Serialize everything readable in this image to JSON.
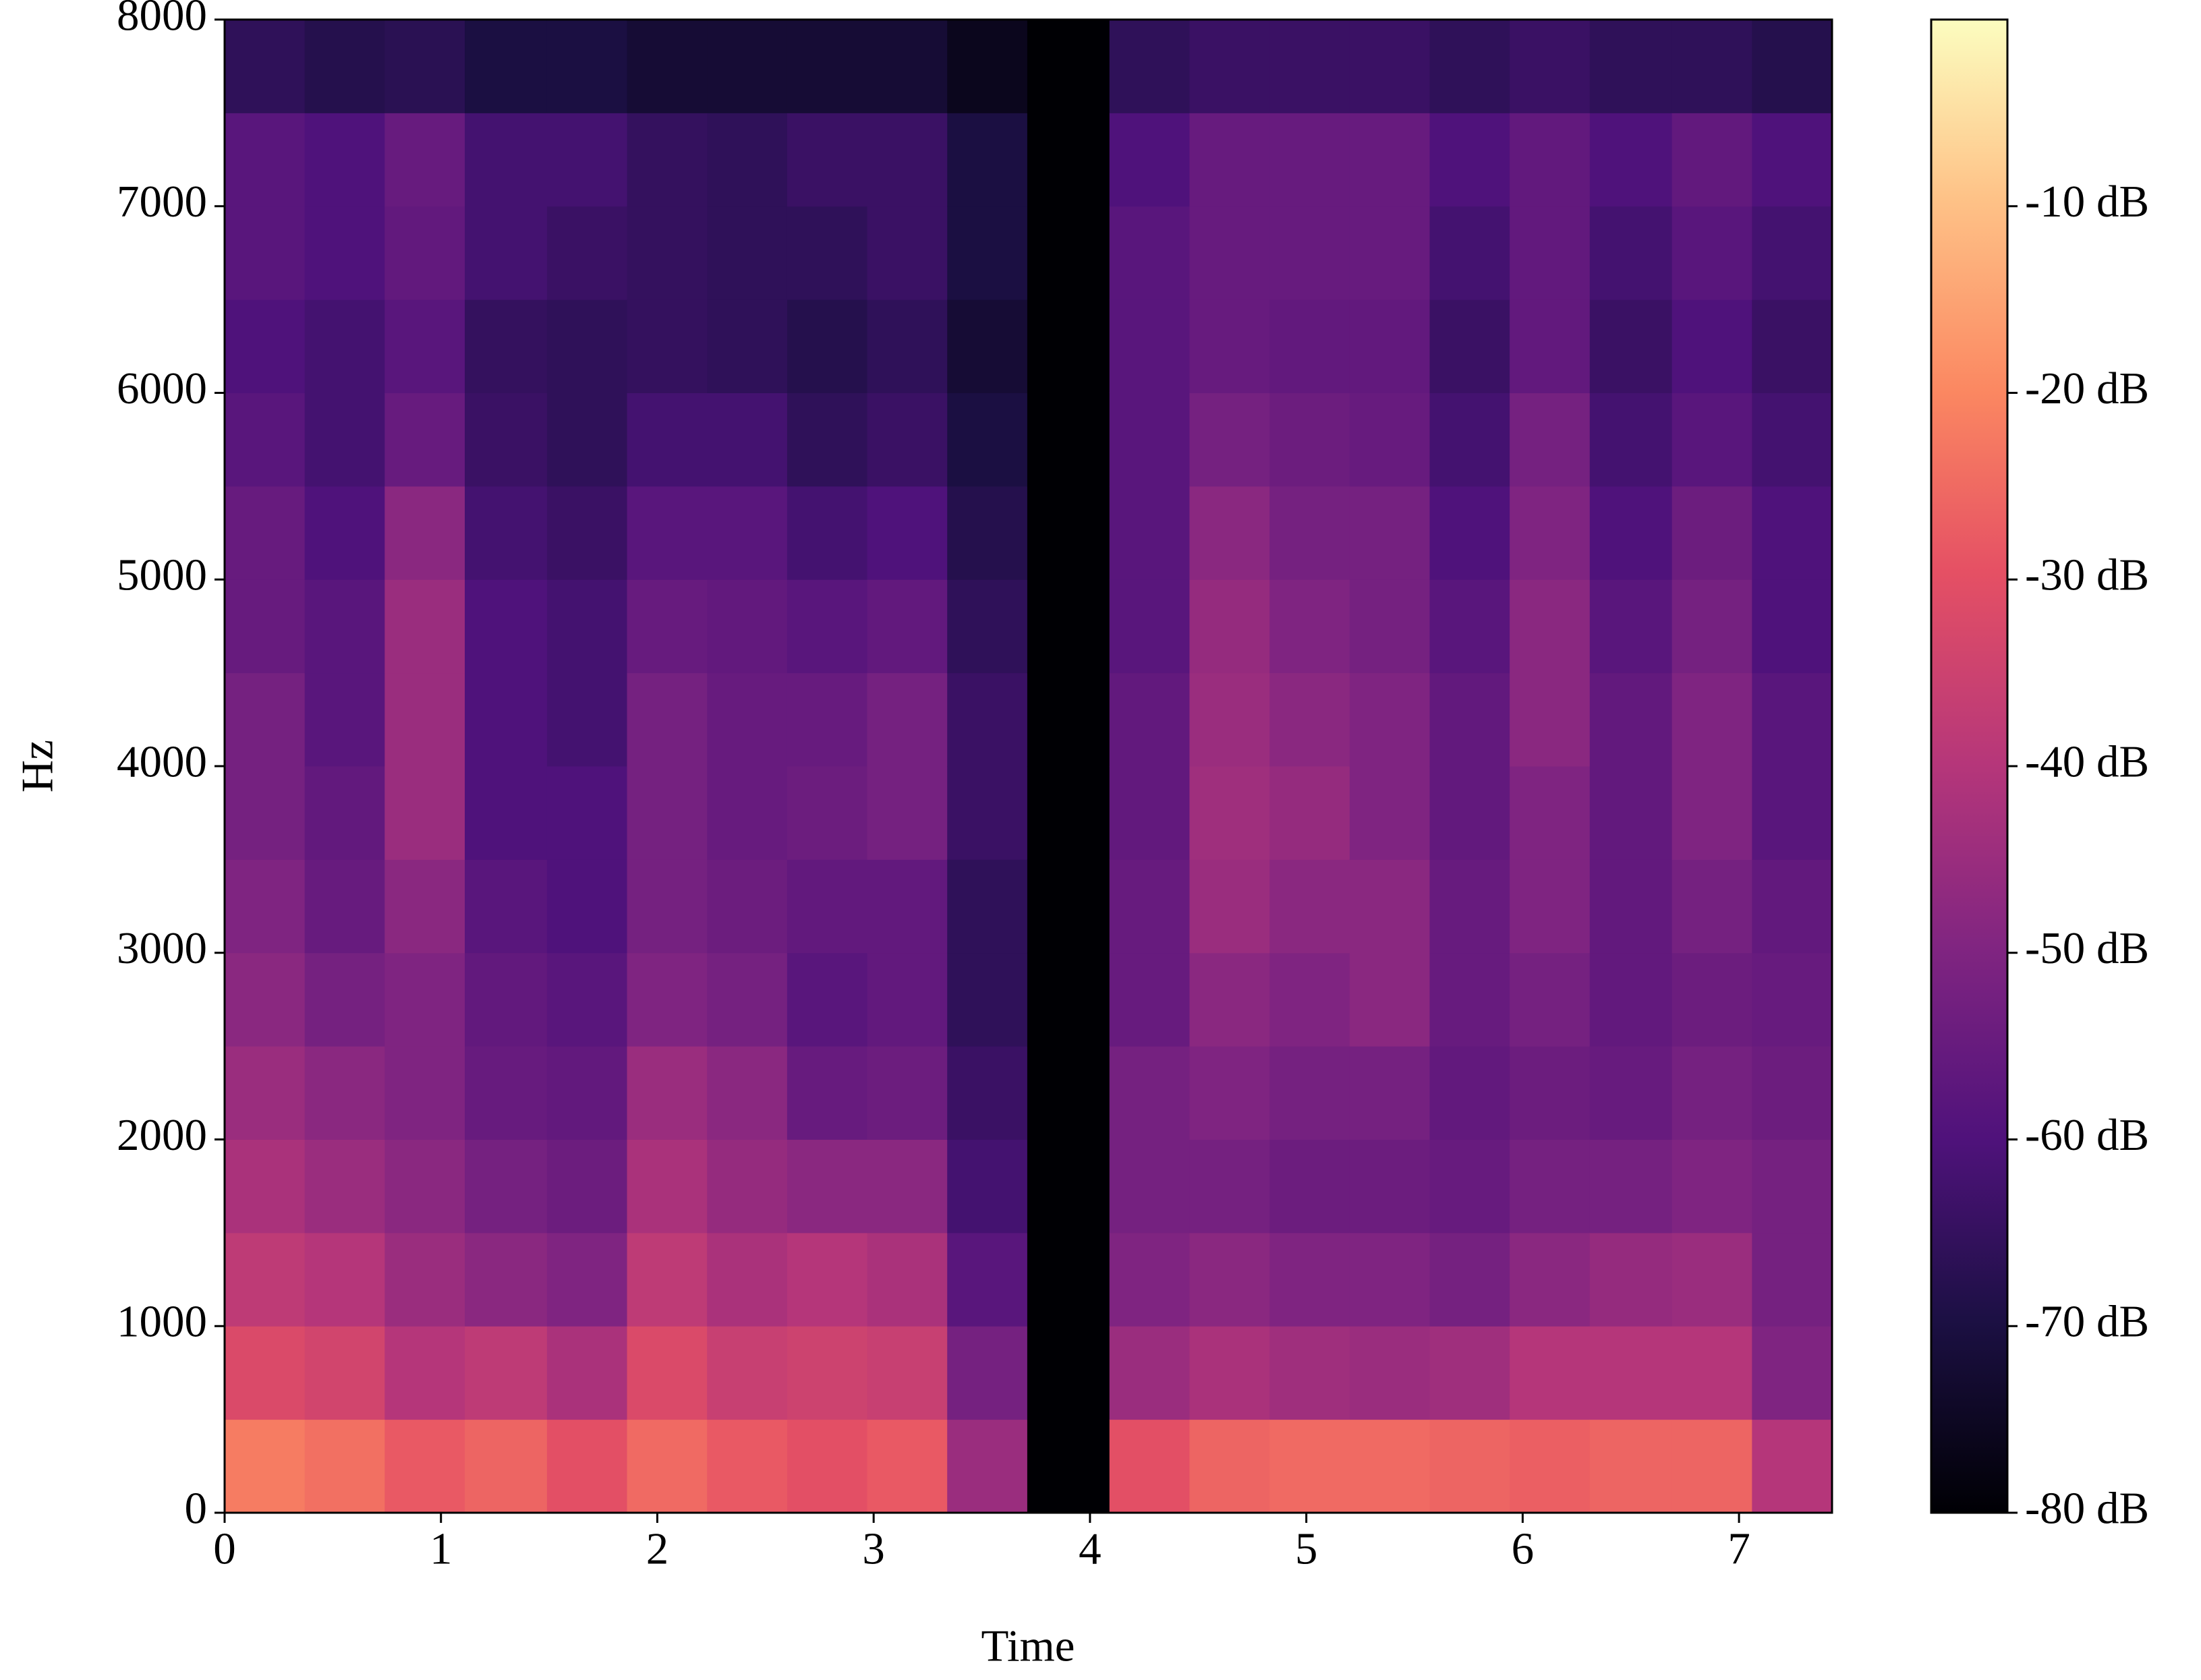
{
  "chart_data": {
    "type": "spectrogram",
    "xlabel": "Time",
    "ylabel": "Hz",
    "colormap": "magma",
    "xlim": [
      0,
      7.43
    ],
    "ylim": [
      0,
      8000
    ],
    "xticks": [
      0,
      1,
      2,
      3,
      4,
      5,
      6,
      7
    ],
    "yticks": [
      0,
      1000,
      2000,
      3000,
      4000,
      5000,
      6000,
      7000,
      8000
    ],
    "clim": [
      -80,
      0
    ],
    "cticks": [
      {
        "value": -80,
        "label": "-80 dB"
      },
      {
        "value": -70,
        "label": "-70 dB"
      },
      {
        "value": -60,
        "label": "-60 dB"
      },
      {
        "value": -50,
        "label": "-50 dB"
      },
      {
        "value": -40,
        "label": "-40 dB"
      },
      {
        "value": -30,
        "label": "-30 dB"
      },
      {
        "value": -20,
        "label": "-20 dB"
      },
      {
        "value": -10,
        "label": "-10 dB"
      }
    ],
    "x_bins": [
      0,
      0.37,
      0.74,
      1.11,
      1.49,
      1.86,
      2.23,
      2.6,
      2.97,
      3.34,
      3.71,
      4.09,
      4.46,
      4.83,
      5.2,
      5.57,
      5.94,
      6.31,
      6.69,
      7.06,
      7.43
    ],
    "y_bins": [
      0,
      500,
      1000,
      1500,
      2000,
      2500,
      3000,
      3500,
      4000,
      4500,
      5000,
      5500,
      6000,
      6500,
      7000,
      7500,
      8000
    ],
    "values": [
      [
        -22,
        -32,
        -38,
        -42,
        -45,
        -48,
        -50,
        -52,
        -52,
        -55,
        -55,
        -58,
        -60,
        -58,
        -58,
        -66
      ],
      [
        -24,
        -34,
        -40,
        -45,
        -48,
        -52,
        -55,
        -56,
        -58,
        -58,
        -60,
        -62,
        -62,
        -60,
        -60,
        -68
      ],
      [
        -28,
        -40,
        -45,
        -48,
        -50,
        -50,
        -48,
        -45,
        -45,
        -45,
        -48,
        -55,
        -58,
        -56,
        -55,
        -67
      ],
      [
        -26,
        -38,
        -48,
        -52,
        -55,
        -56,
        -58,
        -60,
        -60,
        -60,
        -62,
        -64,
        -65,
        -62,
        -62,
        -70
      ],
      [
        -30,
        -42,
        -50,
        -54,
        -56,
        -58,
        -60,
        -60,
        -62,
        -62,
        -64,
        -66,
        -66,
        -64,
        -62,
        -70
      ],
      [
        -25,
        -32,
        -38,
        -42,
        -45,
        -50,
        -52,
        -52,
        -52,
        -55,
        -58,
        -62,
        -65,
        -65,
        -65,
        -72
      ],
      [
        -28,
        -36,
        -42,
        -46,
        -48,
        -52,
        -54,
        -55,
        -55,
        -56,
        -58,
        -62,
        -66,
        -66,
        -66,
        -72
      ],
      [
        -30,
        -35,
        -40,
        -48,
        -55,
        -58,
        -56,
        -54,
        -55,
        -58,
        -62,
        -66,
        -68,
        -66,
        -64,
        -72
      ],
      [
        -28,
        -36,
        -42,
        -48,
        -54,
        -56,
        -56,
        -52,
        -52,
        -56,
        -60,
        -64,
        -66,
        -64,
        -64,
        -72
      ],
      [
        -45,
        -52,
        -58,
        -62,
        -64,
        -66,
        -66,
        -64,
        -64,
        -66,
        -68,
        -70,
        -72,
        -70,
        -70,
        -76
      ],
      [
        -80,
        -80,
        -80,
        -80,
        -80,
        -80,
        -80,
        -80,
        -80,
        -80,
        -80,
        -80,
        -80,
        -80,
        -80,
        -80
      ],
      [
        -30,
        -45,
        -50,
        -52,
        -52,
        -55,
        -55,
        -56,
        -56,
        -58,
        -58,
        -58,
        -58,
        -58,
        -60,
        -66
      ],
      [
        -26,
        -42,
        -48,
        -52,
        -50,
        -48,
        -45,
        -44,
        -45,
        -46,
        -48,
        -52,
        -55,
        -55,
        -55,
        -64
      ],
      [
        -25,
        -44,
        -50,
        -54,
        -52,
        -50,
        -48,
        -46,
        -48,
        -50,
        -52,
        -54,
        -56,
        -55,
        -55,
        -64
      ],
      [
        -25,
        -45,
        -50,
        -54,
        -52,
        -48,
        -48,
        -50,
        -50,
        -52,
        -52,
        -55,
        -56,
        -55,
        -55,
        -64
      ],
      [
        -26,
        -44,
        -52,
        -55,
        -56,
        -55,
        -55,
        -56,
        -56,
        -58,
        -60,
        -62,
        -64,
        -62,
        -60,
        -66
      ],
      [
        -27,
        -40,
        -48,
        -52,
        -54,
        -52,
        -50,
        -50,
        -48,
        -48,
        -50,
        -52,
        -56,
        -56,
        -56,
        -64
      ],
      [
        -26,
        -40,
        -46,
        -52,
        -55,
        -56,
        -56,
        -56,
        -56,
        -58,
        -60,
        -62,
        -64,
        -62,
        -60,
        -66
      ],
      [
        -26,
        -40,
        -45,
        -50,
        -52,
        -54,
        -52,
        -50,
        -50,
        -52,
        -54,
        -58,
        -60,
        -58,
        -56,
        -66
      ],
      [
        -40,
        -50,
        -52,
        -52,
        -54,
        -55,
        -56,
        -58,
        -58,
        -60,
        -60,
        -62,
        -64,
        -62,
        -60,
        -68
      ]
    ]
  }
}
